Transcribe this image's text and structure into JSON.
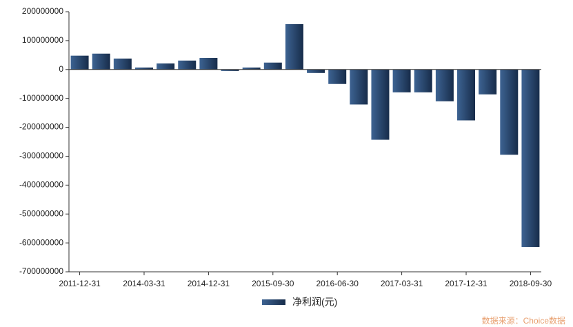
{
  "chart_data": {
    "type": "bar",
    "categories": [
      "2011-12-31",
      null,
      null,
      "2014-03-31",
      null,
      null,
      "2014-12-31",
      null,
      null,
      "2015-09-30",
      null,
      null,
      "2016-06-30",
      null,
      null,
      "2017-03-31",
      null,
      null,
      "2017-12-31",
      null,
      null,
      "2018-09-30"
    ],
    "series": [
      {
        "name": "净利润(元)",
        "color": "#1f3a5f",
        "values": [
          48000000,
          55000000,
          38000000,
          7000000,
          21000000,
          31000000,
          40000000,
          -5000000,
          7000000,
          24000000,
          157000000,
          -12000000,
          -50000000,
          -121000000,
          -243000000,
          -79000000,
          -79000000,
          -110000000,
          -176000000,
          -86000000,
          -295000000,
          -614000000
        ]
      }
    ],
    "ylim": [
      -700000000,
      200000000
    ],
    "yticks": [
      200000000,
      100000000,
      0,
      -100000000,
      -200000000,
      -300000000,
      -400000000,
      -500000000,
      -600000000,
      -700000000
    ],
    "legend": "bottom",
    "source": "数据来源：Choice数据"
  }
}
